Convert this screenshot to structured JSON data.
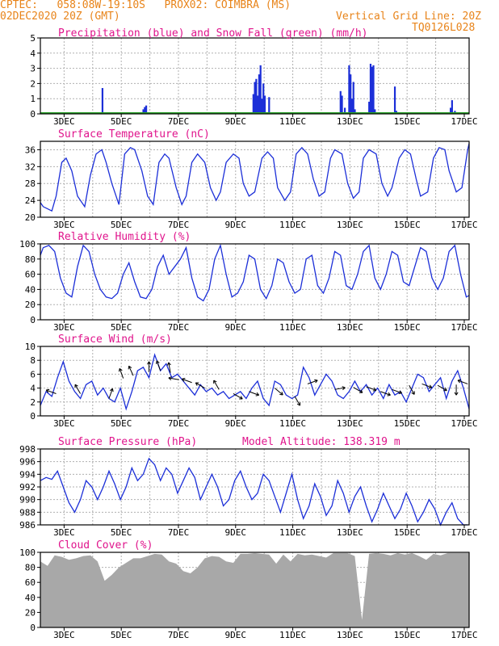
{
  "header": {
    "line1": "CPTEC:   058:08W-19:10S   PROX02: COIMBRA (MS)",
    "line2_left": "02DEC2020 20Z (GMT)",
    "line2_right": "Vertical Grid Line: 20Z",
    "code": "TQ0126L028"
  },
  "colors": {
    "header": "#e8841a",
    "title": "#e0148c",
    "line": "#1c2fd8",
    "snow": "#28a028",
    "cloud": "#a8a8a8",
    "grid": "#b0b0b0"
  },
  "chart_data": [
    {
      "type": "bar",
      "title": "Precipitation (blue) and Snow Fall (green) (mm/h)",
      "ylim": [
        0,
        5
      ],
      "yticks": [
        0,
        1,
        2,
        3,
        4,
        5
      ],
      "xlim": [
        2.0,
        17.0
      ],
      "xticks": [
        "3DEC",
        "5DEC",
        "7DEC",
        "9DEC",
        "11DEC",
        "13DEC",
        "15DEC",
        "17DEC"
      ],
      "series": [
        {
          "name": "Precipitation",
          "x": [
            4.17,
            5.6,
            5.65,
            5.7,
            9.45,
            9.5,
            9.55,
            9.6,
            9.65,
            9.7,
            9.75,
            9.8,
            9.85,
            10.0,
            12.5,
            12.55,
            12.65,
            12.8,
            12.85,
            12.9,
            12.95,
            13.0,
            13.5,
            13.55,
            13.6,
            13.65,
            13.7,
            14.4,
            14.45,
            14.5,
            16.35,
            16.4,
            16.5
          ],
          "values": [
            1.7,
            0.3,
            0.45,
            0.55,
            1.3,
            2.1,
            2.3,
            1.2,
            2.6,
            3.2,
            1.0,
            2.0,
            1.2,
            1.1,
            1.5,
            1.2,
            0.4,
            3.2,
            2.6,
            1.0,
            2.1,
            0.3,
            0.8,
            3.3,
            3.1,
            3.2,
            0.3,
            1.8,
            0.2,
            0.1,
            0.4,
            0.9,
            0.2
          ]
        },
        {
          "name": "Snow Fall",
          "x": [],
          "values": []
        }
      ]
    },
    {
      "type": "line",
      "title": "Surface Temperature (nC)",
      "ylim": [
        20,
        38
      ],
      "yticks": [
        20,
        24,
        28,
        32,
        36
      ],
      "xlim": [
        2.0,
        17.0
      ],
      "xticks": [
        "3DEC",
        "5DEC",
        "7DEC",
        "9DEC",
        "11DEC",
        "13DEC",
        "15DEC",
        "17DEC"
      ],
      "series": [
        {
          "x": [
            2.0,
            2.1,
            2.25,
            2.4,
            2.55,
            2.75,
            2.9,
            3.1,
            3.3,
            3.55,
            3.75,
            3.95,
            4.15,
            4.3,
            4.5,
            4.75,
            4.95,
            5.15,
            5.3,
            5.55,
            5.75,
            5.95,
            6.15,
            6.35,
            6.5,
            6.75,
            6.95,
            7.1,
            7.3,
            7.5,
            7.75,
            7.95,
            8.15,
            8.3,
            8.5,
            8.75,
            8.95,
            9.1,
            9.3,
            9.5,
            9.75,
            9.95,
            10.15,
            10.3,
            10.55,
            10.75,
            10.95,
            11.15,
            11.35,
            11.55,
            11.75,
            11.95,
            12.15,
            12.3,
            12.55,
            12.75,
            12.95,
            13.15,
            13.3,
            13.5,
            13.75,
            13.95,
            14.15,
            14.3,
            14.55,
            14.75,
            14.95,
            15.15,
            15.3,
            15.55,
            15.75,
            15.95,
            16.15,
            16.3,
            16.55,
            16.75,
            16.95,
            17.0
          ],
          "values": [
            23.5,
            22.5,
            22,
            21.5,
            25,
            33,
            34,
            31,
            25,
            22.5,
            30,
            35,
            36,
            33,
            28,
            23,
            35,
            36.5,
            36,
            31,
            25,
            23,
            33,
            35,
            34,
            27,
            23,
            25,
            33,
            35,
            33,
            27,
            24,
            26,
            33,
            35,
            34,
            28,
            25,
            26,
            34,
            35.5,
            34,
            27,
            24,
            26,
            35,
            36.5,
            35,
            29,
            25,
            26,
            34,
            36,
            35,
            28,
            24.5,
            26,
            34,
            36,
            35,
            28,
            25,
            27,
            34,
            36,
            35,
            29,
            25,
            26,
            34,
            36.5,
            36,
            31,
            26,
            27,
            36,
            37.5
          ]
        }
      ]
    },
    {
      "type": "line",
      "title": "Relative Humidity (%)",
      "ylim": [
        0,
        100
      ],
      "yticks": [
        0,
        20,
        40,
        60,
        80,
        100
      ],
      "xlim": [
        2.0,
        17.0
      ],
      "xticks": [
        "3DEC",
        "5DEC",
        "7DEC",
        "9DEC",
        "11DEC",
        "13DEC",
        "15DEC",
        "17DEC"
      ],
      "series": [
        {
          "x": [
            2.0,
            2.1,
            2.3,
            2.5,
            2.7,
            2.9,
            3.1,
            3.3,
            3.5,
            3.7,
            3.9,
            4.1,
            4.3,
            4.5,
            4.7,
            4.9,
            5.1,
            5.3,
            5.5,
            5.7,
            5.9,
            6.1,
            6.3,
            6.5,
            6.7,
            6.9,
            7.1,
            7.3,
            7.5,
            7.7,
            7.9,
            8.1,
            8.3,
            8.5,
            8.7,
            8.9,
            9.1,
            9.3,
            9.5,
            9.7,
            9.9,
            10.1,
            10.3,
            10.5,
            10.7,
            10.9,
            11.1,
            11.3,
            11.5,
            11.7,
            11.9,
            12.1,
            12.3,
            12.5,
            12.7,
            12.9,
            13.1,
            13.3,
            13.5,
            13.7,
            13.9,
            14.1,
            14.3,
            14.5,
            14.7,
            14.9,
            15.1,
            15.3,
            15.5,
            15.7,
            15.9,
            16.1,
            16.3,
            16.5,
            16.7,
            16.9,
            17.0
          ],
          "values": [
            85,
            95,
            98,
            90,
            55,
            35,
            30,
            70,
            98,
            90,
            60,
            40,
            30,
            28,
            35,
            60,
            75,
            50,
            30,
            28,
            40,
            70,
            85,
            60,
            70,
            80,
            95,
            55,
            30,
            25,
            40,
            80,
            98,
            60,
            30,
            35,
            50,
            85,
            80,
            40,
            28,
            45,
            80,
            75,
            50,
            35,
            40,
            80,
            85,
            45,
            35,
            55,
            90,
            85,
            45,
            40,
            60,
            90,
            98,
            55,
            40,
            60,
            90,
            85,
            50,
            45,
            70,
            95,
            90,
            55,
            40,
            55,
            90,
            98,
            60,
            30,
            32
          ]
        }
      ]
    },
    {
      "type": "line",
      "title": "Surface Wind (m/s)",
      "ylim": [
        0,
        10
      ],
      "yticks": [
        0,
        2,
        4,
        6,
        8,
        10
      ],
      "xlim": [
        2.0,
        17.0
      ],
      "xticks": [
        "3DEC",
        "5DEC",
        "7DEC",
        "9DEC",
        "11DEC",
        "13DEC",
        "15DEC",
        "17DEC"
      ],
      "series": [
        {
          "x": [
            2.0,
            2.2,
            2.4,
            2.6,
            2.8,
            3.0,
            3.2,
            3.4,
            3.6,
            3.8,
            4.0,
            4.2,
            4.4,
            4.6,
            4.8,
            5.0,
            5.2,
            5.4,
            5.6,
            5.8,
            6.0,
            6.2,
            6.4,
            6.6,
            6.8,
            7.0,
            7.2,
            7.4,
            7.6,
            7.8,
            8.0,
            8.2,
            8.4,
            8.6,
            8.8,
            9.0,
            9.2,
            9.4,
            9.6,
            9.8,
            10.0,
            10.2,
            10.4,
            10.6,
            10.8,
            11.0,
            11.2,
            11.4,
            11.6,
            11.8,
            12.0,
            12.2,
            12.4,
            12.6,
            12.8,
            13.0,
            13.2,
            13.4,
            13.6,
            13.8,
            14.0,
            14.2,
            14.4,
            14.6,
            14.8,
            15.0,
            15.2,
            15.4,
            15.6,
            15.8,
            16.0,
            16.2,
            16.4,
            16.6,
            16.8,
            17.0
          ],
          "values": [
            1.5,
            3.5,
            2.8,
            5.5,
            7.8,
            5,
            3.5,
            2.5,
            4.5,
            5,
            3,
            4,
            2.5,
            2,
            4,
            1,
            3.5,
            6.5,
            7,
            5.5,
            8.8,
            6.5,
            7.5,
            5.5,
            6,
            5,
            4,
            3,
            4.5,
            3.5,
            4,
            3,
            3.5,
            2.5,
            3,
            3.5,
            2.5,
            4,
            5,
            2.5,
            1.5,
            5,
            4.5,
            3,
            2.5,
            3,
            7,
            5.5,
            3,
            4.5,
            6,
            5,
            3,
            2.5,
            3.5,
            5,
            3.5,
            4.5,
            3,
            4,
            2.5,
            4.5,
            3,
            3.5,
            2,
            4,
            6,
            5.5,
            3.5,
            4.5,
            5.5,
            2.5,
            5,
            6.5,
            4,
            1
          ]
        }
      ],
      "arrows": [
        {
          "x": 2.55,
          "y": 3.2,
          "angle": 200
        },
        {
          "x": 3.4,
          "y": 3.2,
          "angle": 240
        },
        {
          "x": 4.4,
          "y": 2.5,
          "angle": 290
        },
        {
          "x": 4.9,
          "y": 5.4,
          "angle": 250
        },
        {
          "x": 5.25,
          "y": 5.8,
          "angle": 245
        },
        {
          "x": 5.8,
          "y": 6.3,
          "angle": 270
        },
        {
          "x": 6.2,
          "y": 6.5,
          "angle": 250
        },
        {
          "x": 6.55,
          "y": 6.2,
          "angle": 260
        },
        {
          "x": 6.85,
          "y": 5.2,
          "angle": 190
        },
        {
          "x": 7.3,
          "y": 4.8,
          "angle": 200
        },
        {
          "x": 7.75,
          "y": 4.0,
          "angle": 210
        },
        {
          "x": 8.25,
          "y": 3.8,
          "angle": 240
        },
        {
          "x": 8.75,
          "y": 3.2,
          "angle": 30
        },
        {
          "x": 9.3,
          "y": 3.5,
          "angle": 20
        },
        {
          "x": 10.2,
          "y": 4.0,
          "angle": 40
        },
        {
          "x": 10.9,
          "y": 2.8,
          "angle": 60
        },
        {
          "x": 11.35,
          "y": 4.6,
          "angle": 340
        },
        {
          "x": 12.3,
          "y": 3.8,
          "angle": 350
        },
        {
          "x": 12.95,
          "y": 4.1,
          "angle": 30
        },
        {
          "x": 13.4,
          "y": 4.2,
          "angle": 20
        },
        {
          "x": 13.9,
          "y": 3.5,
          "angle": 20
        },
        {
          "x": 14.3,
          "y": 3.8,
          "angle": 20
        },
        {
          "x": 14.9,
          "y": 4.4,
          "angle": 60
        },
        {
          "x": 15.35,
          "y": 4.6,
          "angle": 20
        },
        {
          "x": 15.9,
          "y": 4.4,
          "angle": 30
        },
        {
          "x": 16.55,
          "y": 4.5,
          "angle": 90
        },
        {
          "x": 16.95,
          "y": 4.6,
          "angle": 200
        }
      ]
    },
    {
      "type": "line",
      "title": "Surface Pressure (hPa)",
      "ylim": [
        986,
        998
      ],
      "yticks": [
        986,
        988,
        990,
        992,
        994,
        996,
        998
      ],
      "xlim": [
        2.0,
        17.0
      ],
      "xticks": [
        "3DEC",
        "5DEC",
        "7DEC",
        "9DEC",
        "11DEC",
        "13DEC",
        "15DEC",
        "17DEC"
      ],
      "annotation": "Model Altitude: 138.319 m",
      "series": [
        {
          "x": [
            2.0,
            2.2,
            2.4,
            2.6,
            2.8,
            3.0,
            3.2,
            3.4,
            3.6,
            3.8,
            4.0,
            4.2,
            4.4,
            4.6,
            4.8,
            5.0,
            5.2,
            5.4,
            5.6,
            5.8,
            6.0,
            6.2,
            6.4,
            6.6,
            6.8,
            7.0,
            7.2,
            7.4,
            7.6,
            7.8,
            8.0,
            8.2,
            8.4,
            8.6,
            8.8,
            9.0,
            9.2,
            9.4,
            9.6,
            9.8,
            10.0,
            10.2,
            10.4,
            10.6,
            10.8,
            11.0,
            11.2,
            11.4,
            11.6,
            11.8,
            12.0,
            12.2,
            12.4,
            12.6,
            12.8,
            13.0,
            13.2,
            13.4,
            13.6,
            13.8,
            14.0,
            14.2,
            14.4,
            14.6,
            14.8,
            15.0,
            15.2,
            15.4,
            15.6,
            15.8,
            16.0,
            16.2,
            16.4,
            16.6,
            16.8,
            16.95
          ],
          "values": [
            993,
            993.5,
            993.2,
            994.5,
            992,
            989.5,
            988,
            990,
            993,
            992,
            990,
            992,
            994.5,
            992.5,
            990,
            992,
            995,
            993,
            994,
            996.5,
            995.5,
            993,
            995,
            994,
            991,
            993,
            995,
            993.5,
            990,
            992,
            994,
            992,
            989,
            990,
            993,
            994.5,
            992,
            990,
            991,
            994,
            993,
            990.5,
            988,
            991,
            994,
            990,
            987,
            989,
            992.5,
            990.5,
            987.5,
            989,
            993,
            991,
            988,
            990.5,
            992,
            989,
            986.5,
            988.5,
            991,
            989,
            987,
            988.5,
            991,
            989,
            986.5,
            988,
            990,
            988.5,
            986,
            988,
            989.5,
            987,
            985.5,
            986
          ]
        }
      ]
    },
    {
      "type": "bar",
      "title": "Cloud Cover (%)",
      "ylim": [
        0,
        100
      ],
      "yticks": [
        0,
        20,
        40,
        60,
        80,
        100
      ],
      "xlim": [
        2.0,
        17.0
      ],
      "xticks": [
        "3DEC",
        "5DEC",
        "7DEC",
        "9DEC",
        "11DEC",
        "13DEC",
        "15DEC",
        "17DEC"
      ],
      "series": [
        {
          "x": [
            2.0,
            2.25,
            2.5,
            2.75,
            3.0,
            3.25,
            3.5,
            3.75,
            4.0,
            4.25,
            4.5,
            4.75,
            5.0,
            5.25,
            5.5,
            5.75,
            6.0,
            6.25,
            6.5,
            6.75,
            7.0,
            7.25,
            7.5,
            7.75,
            8.0,
            8.25,
            8.5,
            8.75,
            9.0,
            9.25,
            9.5,
            9.75,
            10.0,
            10.25,
            10.5,
            10.75,
            11.0,
            11.25,
            11.5,
            11.75,
            12.0,
            12.25,
            12.5,
            12.75,
            13.0,
            13.25,
            13.5,
            13.75,
            14.0,
            14.25,
            14.5,
            14.75,
            15.0,
            15.25,
            15.5,
            15.75,
            16.0,
            16.25,
            16.5,
            16.75,
            17.0
          ],
          "values": [
            88,
            82,
            96,
            94,
            90,
            92,
            95,
            96,
            88,
            62,
            70,
            80,
            86,
            92,
            92,
            95,
            98,
            97,
            88,
            85,
            75,
            72,
            80,
            92,
            95,
            94,
            88,
            86,
            98,
            98,
            99,
            98,
            97,
            85,
            97,
            88,
            98,
            96,
            97,
            95,
            93,
            99,
            99,
            99,
            95,
            10,
            98,
            99,
            98,
            96,
            99,
            97,
            99,
            95,
            90,
            98,
            96,
            99,
            99,
            99,
            99
          ]
        }
      ]
    }
  ]
}
